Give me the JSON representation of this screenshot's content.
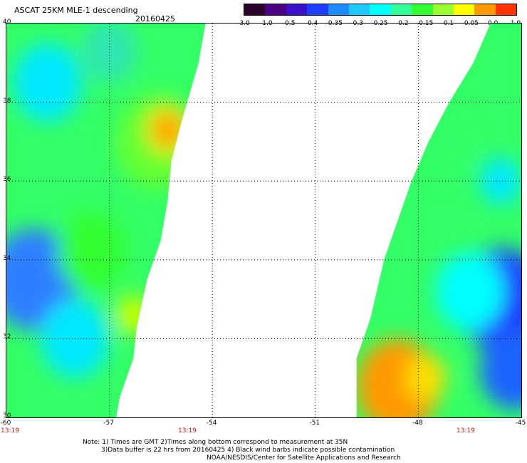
{
  "header": {
    "title": "ASCAT 25KM MLE-1 descending",
    "date": "20160425"
  },
  "colorbar": {
    "labels": [
      "-3.0",
      "-1.0",
      "-0.5",
      "-0.4",
      "-0.35",
      "-0.3",
      "-0.25",
      "-0.2",
      "-0.15",
      "-0.1",
      "-0.05",
      "0.0",
      "1.0"
    ],
    "colors": [
      "#2b002b",
      "#4b0082",
      "#3a10c8",
      "#1f3cff",
      "#1e8cff",
      "#1ec8ff",
      "#00ffff",
      "#33ff99",
      "#33ff33",
      "#99ff33",
      "#ffff00",
      "#ff9900",
      "#ff3300"
    ]
  },
  "map": {
    "lon_labels": [
      "-60",
      "-57",
      "-54",
      "-51",
      "-48",
      "-45"
    ],
    "lat_labels": [
      "40",
      "38",
      "36",
      "34",
      "32",
      "30"
    ],
    "lon_range": [
      -60,
      -45
    ],
    "lat_range": [
      30,
      40
    ],
    "grid": true,
    "grid_lons": [
      -57,
      -54,
      -51,
      -48
    ],
    "grid_lats": [
      32,
      34,
      36,
      38
    ],
    "swath_west": {
      "polygon": [
        [
          -60,
          40
        ],
        [
          -54.2,
          40
        ],
        [
          -54.4,
          39
        ],
        [
          -54.9,
          37.5
        ],
        [
          -55.2,
          36.5
        ],
        [
          -55.3,
          35.5
        ],
        [
          -55.5,
          34.5
        ],
        [
          -55.9,
          33.5
        ],
        [
          -56.2,
          32.3
        ],
        [
          -56.3,
          31.5
        ],
        [
          -56.7,
          30.5
        ],
        [
          -56.8,
          30
        ],
        [
          -60,
          30
        ]
      ],
      "blobs": [
        {
          "lon": -59.2,
          "lat": 33.5,
          "r": 1.3,
          "color": "#2f7fff"
        },
        {
          "lon": -58.0,
          "lat": 32.0,
          "r": 1.0,
          "color": "#00e8ff"
        },
        {
          "lon": -58.8,
          "lat": 38.5,
          "r": 1.0,
          "color": "#00e8ff"
        },
        {
          "lon": -57.0,
          "lat": 39.3,
          "r": 0.8,
          "color": "#2ee6b0"
        },
        {
          "lon": -55.6,
          "lat": 37.0,
          "r": 1.2,
          "color": "#66ff33"
        },
        {
          "lon": -55.3,
          "lat": 37.3,
          "r": 0.6,
          "color": "#ffdd00"
        },
        {
          "lon": -55.3,
          "lat": 37.3,
          "r": 0.4,
          "color": "#ff9900"
        },
        {
          "lon": -56.3,
          "lat": 32.6,
          "r": 0.5,
          "color": "#ccff00"
        },
        {
          "lon": -57.5,
          "lat": 34.2,
          "r": 1.0,
          "color": "#33ff33"
        }
      ]
    },
    "swath_east": {
      "polygon": [
        [
          -45,
          40
        ],
        [
          -45.9,
          40
        ],
        [
          -46.4,
          39
        ],
        [
          -47.1,
          38
        ],
        [
          -47.7,
          37
        ],
        [
          -48.2,
          36
        ],
        [
          -48.6,
          35
        ],
        [
          -49.0,
          34
        ],
        [
          -49.4,
          32.5
        ],
        [
          -49.8,
          31.5
        ],
        [
          -49.8,
          30
        ],
        [
          -45,
          30
        ]
      ],
      "blobs": [
        {
          "lon": -45.6,
          "lat": 33.0,
          "r": 1.3,
          "color": "#1f3cff"
        },
        {
          "lon": -45.2,
          "lat": 31.2,
          "r": 1.0,
          "color": "#1e64ff"
        },
        {
          "lon": -46.5,
          "lat": 33.2,
          "r": 1.0,
          "color": "#00ffff"
        },
        {
          "lon": -45.6,
          "lat": 36.0,
          "r": 0.6,
          "color": "#00e8ff"
        },
        {
          "lon": -48.6,
          "lat": 30.8,
          "r": 1.2,
          "color": "#ff9900"
        },
        {
          "lon": -47.8,
          "lat": 31.0,
          "r": 0.6,
          "color": "#ffdd00"
        },
        {
          "lon": -47.4,
          "lat": 37.0,
          "r": 1.0,
          "color": "#33ff66"
        }
      ]
    }
  },
  "time_labels": [
    "13:19",
    "13:19",
    "13:19"
  ],
  "notes": {
    "line1": "Note: 1) Times are GMT 2)Times along bottom correspond to measurement at 35N",
    "line2": "3)Data buffer is 22 hrs from 20160425 4) Black wind barbs indicate possible contamination",
    "line3": "NOAA/NESDIS/Center for Satellite Applications and Research"
  }
}
